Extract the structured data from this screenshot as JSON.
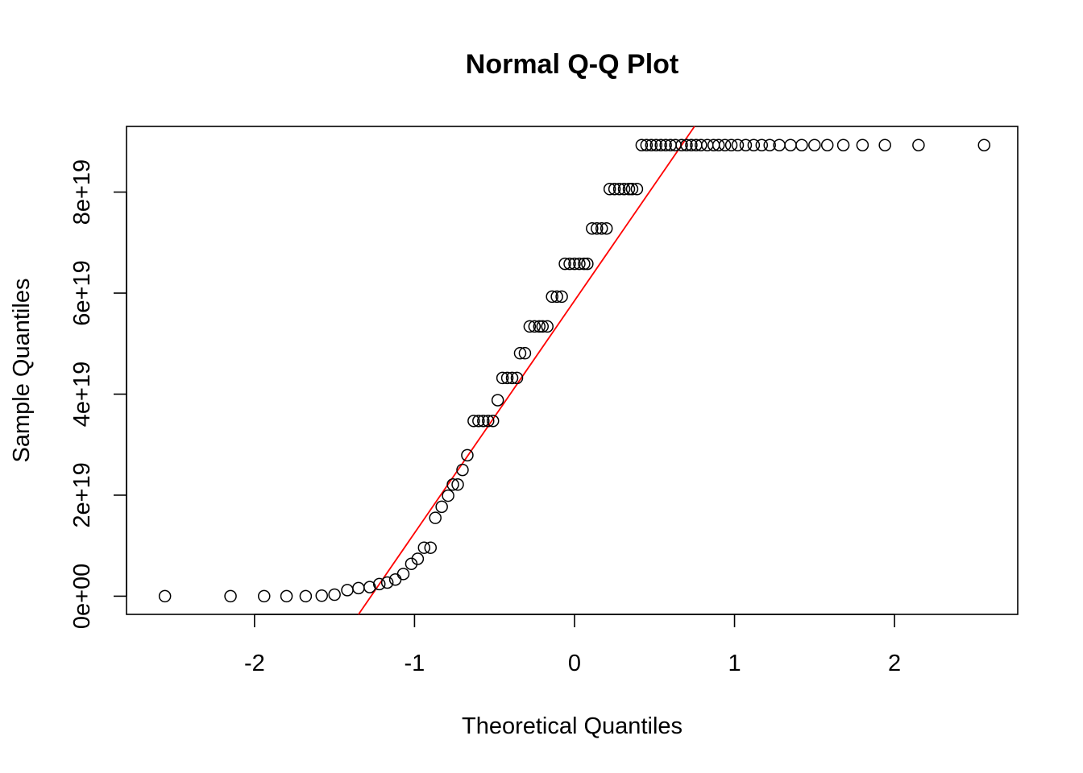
{
  "chart_data": {
    "type": "scatter",
    "title": "Normal Q-Q Plot",
    "xlabel": "Theoretical Quantiles",
    "ylabel": "Sample Quantiles",
    "xlim": [
      -2.8,
      2.77
    ],
    "ylim": [
      -3.6e+18,
      9.3e+19
    ],
    "x_ticks": [
      -2,
      -1,
      0,
      1,
      2
    ],
    "x_tick_labels": [
      "-2",
      "-1",
      "0",
      "1",
      "2"
    ],
    "y_ticks": [
      0,
      2e+19,
      4e+19,
      6e+19,
      8e+19
    ],
    "y_tick_labels": [
      "0e+00",
      "2e+19",
      "4e+19",
      "6e+19",
      "8e+19"
    ],
    "grid": false,
    "legend": "none",
    "colors": {
      "points": "#000000",
      "reference_line": "#ff0000"
    },
    "series": [
      {
        "values_x": [
          -2.56,
          -2.15,
          -1.94,
          -1.8,
          -1.68,
          -1.58,
          -1.5,
          -1.42,
          -1.35,
          -1.28,
          -1.22,
          -1.17,
          -1.12,
          -1.07,
          -1.02,
          -0.98,
          -0.94,
          -0.9,
          -0.87,
          -0.83,
          -0.79,
          -0.76,
          -0.73,
          -0.7,
          -0.67,
          -0.63,
          -0.6,
          -0.57,
          -0.54,
          -0.51,
          -0.48,
          -0.45,
          -0.42,
          -0.39,
          -0.36,
          -0.34,
          -0.31,
          -0.28,
          -0.25,
          -0.22,
          -0.2,
          -0.17,
          -0.14,
          -0.11,
          -0.08,
          -0.06,
          -0.03,
          0.0,
          0.03,
          0.06,
          0.08,
          0.11,
          0.14,
          0.17,
          0.2,
          0.22,
          0.25,
          0.28,
          0.31,
          0.34,
          0.36,
          0.39,
          0.42,
          0.45,
          0.48,
          0.51,
          0.54,
          0.57,
          0.6,
          0.63,
          0.67,
          0.7,
          0.73,
          0.76,
          0.79,
          0.83,
          0.87,
          0.9,
          0.94,
          0.98,
          1.02,
          1.07,
          1.12,
          1.17,
          1.22,
          1.28,
          1.35,
          1.42,
          1.5,
          1.58,
          1.68,
          1.8,
          1.94,
          2.15,
          2.56
        ],
        "values_y": [
          0,
          0,
          0,
          0,
          0,
          1e+17,
          3e+17,
          1.2e+18,
          1.6e+18,
          1.8e+18,
          2.4e+18,
          2.7e+18,
          3.3e+18,
          4.4e+18,
          6.4e+18,
          7.4e+18,
          9.6e+18,
          9.6e+18,
          1.55e+19,
          1.77e+19,
          1.99e+19,
          2.21e+19,
          2.21e+19,
          2.5e+19,
          2.79e+19,
          3.47e+19,
          3.47e+19,
          3.47e+19,
          3.47e+19,
          3.47e+19,
          3.88e+19,
          4.32e+19,
          4.32e+19,
          4.32e+19,
          4.32e+19,
          4.81e+19,
          4.81e+19,
          5.34e+19,
          5.34e+19,
          5.34e+19,
          5.34e+19,
          5.34e+19,
          5.93e+19,
          5.93e+19,
          5.93e+19,
          6.58e+19,
          6.58e+19,
          6.58e+19,
          6.58e+19,
          6.58e+19,
          6.58e+19,
          7.28e+19,
          7.28e+19,
          7.28e+19,
          7.28e+19,
          8.06e+19,
          8.06e+19,
          8.06e+19,
          8.06e+19,
          8.06e+19,
          8.06e+19,
          8.06e+19,
          8.93e+19,
          8.93e+19,
          8.93e+19,
          8.93e+19,
          8.93e+19,
          8.93e+19,
          8.93e+19,
          8.93e+19,
          8.93e+19,
          8.93e+19,
          8.93e+19,
          8.93e+19,
          8.93e+19,
          8.93e+19,
          8.93e+19,
          8.93e+19,
          8.93e+19,
          8.93e+19,
          8.93e+19,
          8.93e+19,
          8.93e+19,
          8.93e+19,
          8.93e+19,
          8.93e+19,
          8.93e+19,
          8.93e+19,
          8.93e+19,
          8.93e+19,
          8.93e+19,
          8.93e+19,
          8.93e+19,
          8.93e+19,
          8.93e+19
        ]
      }
    ],
    "reference_line": {
      "x": [
        -1.35,
        0.75
      ],
      "y": [
        -3.6e+18,
        9.3e+19
      ]
    }
  }
}
